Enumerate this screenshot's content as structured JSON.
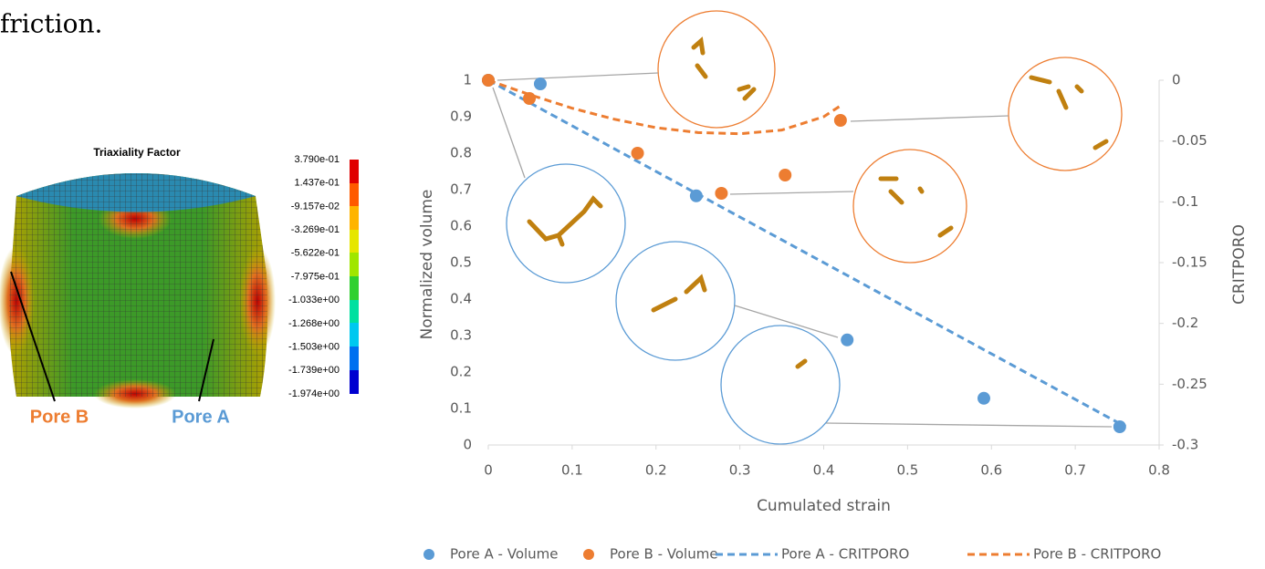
{
  "caption_fragment": "friction.",
  "contour": {
    "title": "Triaxiality Factor",
    "legend_labels": [
      "3.790e-01",
      "1.437e-01",
      "-9.157e-02",
      "-3.269e-01",
      "-5.622e-01",
      "-7.975e-01",
      "-1.033e+00",
      "-1.268e+00",
      "-1.503e+00",
      "-1.739e+00",
      "-1.974e+00"
    ],
    "pore_labels": [
      "Pore B",
      "Pore A"
    ]
  },
  "chart_data": {
    "type": "scatter",
    "x_label": "Cumulated strain",
    "y_label": "Normalized volume",
    "y2_label": "CRITPORO",
    "xlim": [
      0,
      0.8
    ],
    "xticks": [
      0,
      0.1,
      0.2,
      0.3,
      0.4,
      0.5,
      0.6,
      0.7,
      0.8
    ],
    "ylim": [
      0,
      1
    ],
    "yticks": [
      0,
      0.1,
      0.2,
      0.3,
      0.4,
      0.5,
      0.6,
      0.7,
      0.8,
      0.9,
      1
    ],
    "y2lim": [
      -0.3,
      0
    ],
    "y2ticks": [
      -0.3,
      -0.25,
      -0.2,
      -0.15,
      -0.1,
      -0.05,
      0
    ],
    "series": [
      {
        "name": "Pore A - Volume",
        "type": "scatter",
        "color": "#5b9bd5",
        "x": [
          0,
          0.062,
          0.248,
          0.428,
          0.591,
          0.753
        ],
        "values": [
          1,
          0.99,
          0.683,
          0.288,
          0.128,
          0.05
        ]
      },
      {
        "name": "Pore B - Volume",
        "type": "scatter",
        "color": "#ed7d31",
        "x": [
          0,
          0.049,
          0.178,
          0.278,
          0.354,
          0.42
        ],
        "values": [
          1,
          0.95,
          0.8,
          0.69,
          0.74,
          0.89
        ]
      },
      {
        "name": "Pore A - CRITPORO",
        "type": "line",
        "axis": "y2",
        "color": "#5b9bd5",
        "x": [
          0,
          0.76
        ],
        "values": [
          0,
          -0.285
        ]
      },
      {
        "name": "Pore B - CRITPORO",
        "type": "line",
        "axis": "y2",
        "color": "#ed7d31",
        "x": [
          0,
          0.05,
          0.1,
          0.15,
          0.2,
          0.25,
          0.3,
          0.35,
          0.4,
          0.42
        ],
        "values": [
          0,
          -0.012,
          -0.023,
          -0.032,
          -0.039,
          -0.043,
          -0.044,
          -0.041,
          -0.03,
          -0.021
        ]
      }
    ]
  }
}
